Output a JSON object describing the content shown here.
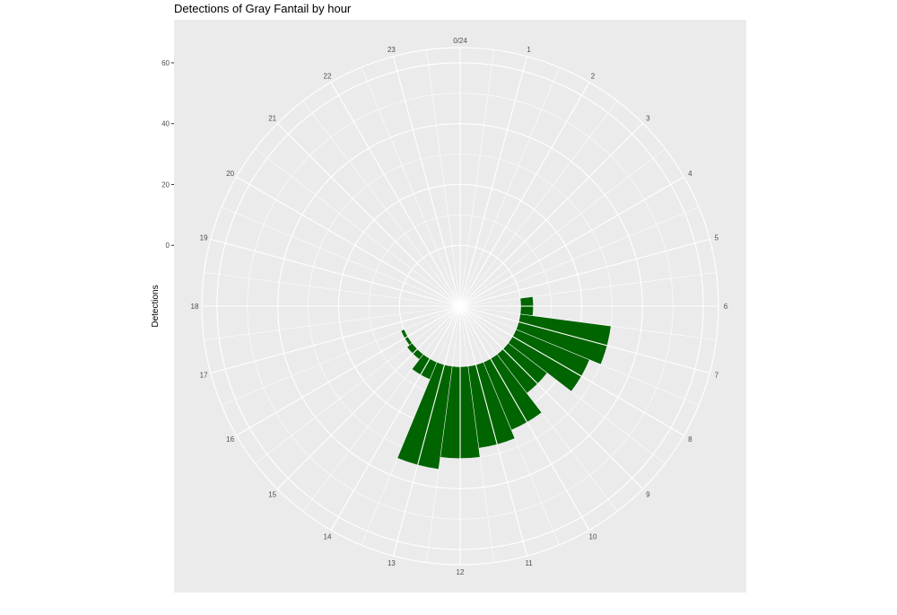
{
  "chart_data": {
    "type": "bar",
    "coordinate_system": "polar",
    "title": "Detections of Gray Fantail by hour",
    "xlabel": "",
    "ylabel": "Detections",
    "categories": [
      "0/24",
      "1",
      "2",
      "3",
      "4",
      "5",
      "6",
      "7",
      "8",
      "9",
      "10",
      "11",
      "12",
      "13",
      "14",
      "15",
      "16",
      "17",
      "18",
      "19",
      "20",
      "21",
      "22",
      "23"
    ],
    "hours": [
      0,
      1,
      2,
      3,
      4,
      5,
      6,
      7,
      8,
      9,
      10,
      11,
      12,
      13,
      14,
      15,
      16,
      17,
      18,
      19,
      20,
      21,
      22,
      23
    ],
    "values": [
      0,
      0,
      0,
      0,
      0,
      0,
      4,
      30,
      26,
      16,
      24,
      27,
      30,
      34,
      6,
      2,
      1,
      0,
      0,
      0,
      0,
      0,
      0,
      0
    ],
    "y_ticks": [
      0,
      20,
      40,
      60
    ],
    "y_tick_labels": [
      "0",
      "20",
      "40",
      "60"
    ],
    "ylim": [
      -20,
      65
    ],
    "grid": true,
    "bar_color": "#006400",
    "panel_color": "#ebebeb",
    "grid_color": "#ffffff"
  }
}
